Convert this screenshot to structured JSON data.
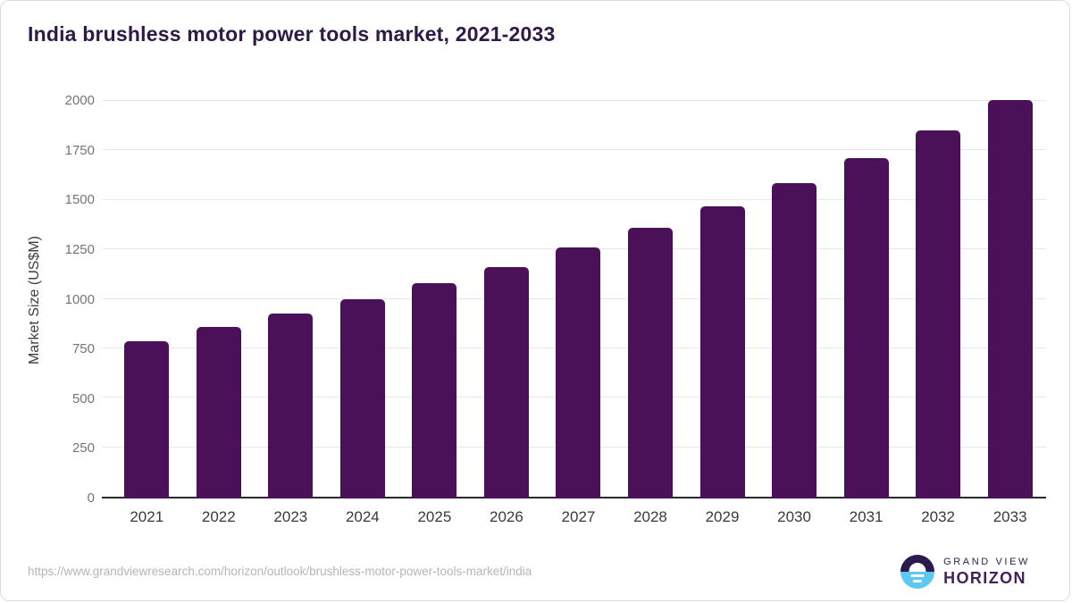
{
  "title": "India brushless motor power tools market, 2021-2033",
  "chart_data": {
    "type": "bar",
    "title": "India brushless motor power tools market, 2021-2033",
    "categories": [
      "2021",
      "2022",
      "2023",
      "2024",
      "2025",
      "2026",
      "2027",
      "2028",
      "2029",
      "2030",
      "2031",
      "2032",
      "2033"
    ],
    "values": [
      793,
      863,
      929,
      1002,
      1081,
      1165,
      1262,
      1364,
      1469,
      1588,
      1714,
      1853,
      2003
    ],
    "xlabel": "",
    "ylabel": "Market Size (US$M)",
    "ylim": [
      0,
      2000
    ],
    "yticks": [
      0,
      250,
      500,
      750,
      1000,
      1250,
      1500,
      1750,
      2000
    ],
    "grid": true,
    "legend": "none",
    "bar_color": "#4a1158"
  },
  "colors": {
    "title_text": "#2e1a47",
    "bar": "#4a1158",
    "gridline": "#e8e8e8",
    "axis_line": "#2b2b2b",
    "tick_text": "#757575",
    "logo_circle_top": "#2b1b4d",
    "logo_circle_bottom": "#5ec8f2"
  },
  "footer": {
    "source_url": "https://www.grandviewresearch.com/horizon/outlook/brushless-motor-power-tools-market/india",
    "logo": {
      "line1": "GRAND VIEW",
      "line2": "HORIZON"
    }
  }
}
